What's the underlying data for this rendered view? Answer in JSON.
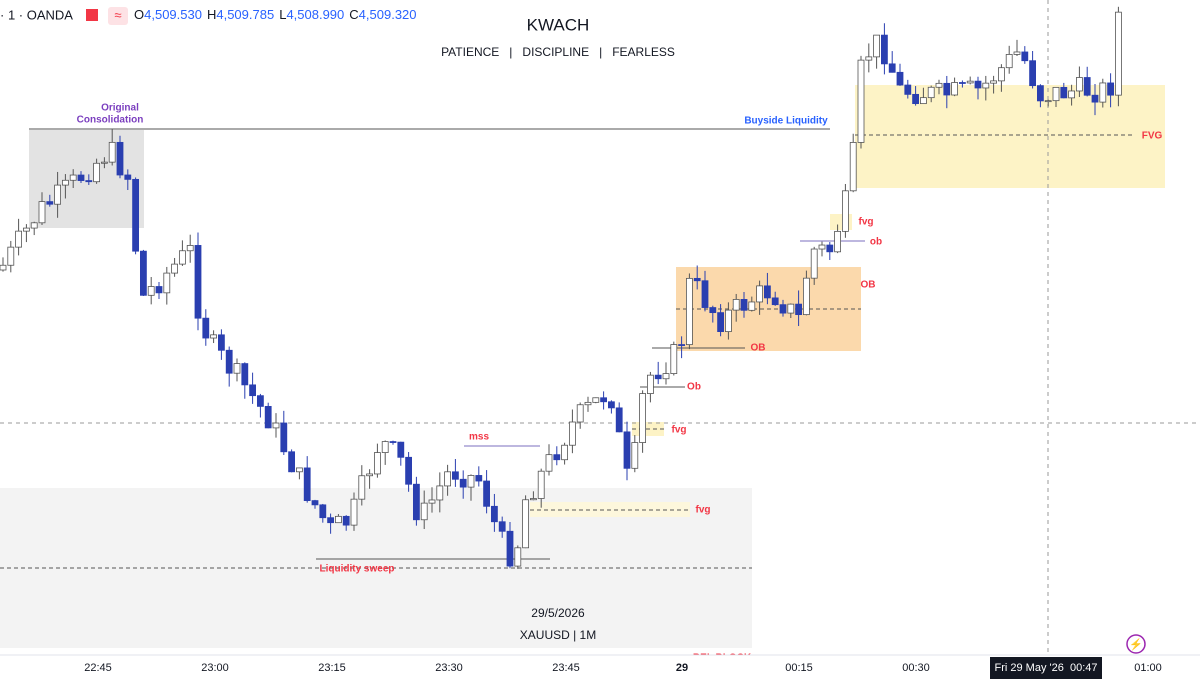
{
  "header": {
    "symbol": "· 1 · OANDA",
    "ohlc": [
      {
        "label": "O",
        "value": "4,509.530"
      },
      {
        "label": "H",
        "value": "4,509.785"
      },
      {
        "label": "L",
        "value": "4,508.990"
      },
      {
        "label": "C",
        "value": "4,509.320"
      }
    ]
  },
  "title": "KWACH",
  "subtitle": "PATIENCE   |   DISCIPLINE   |   FEARLESS",
  "annotations": [
    "Original",
    "Consolidation",
    "Buyside Liquidity",
    "FVG",
    "fvg",
    "ob",
    "OB",
    "OB",
    "Ob",
    "fvg",
    "mss",
    "fvg",
    "Liquidity sweep",
    "BEL BLOCK"
  ],
  "watermark": {
    "date": "29/5/2026",
    "symbol": "XAUUSD | 1M"
  },
  "time_axis": [
    "22:45",
    "23:00",
    "23:15",
    "23:30",
    "23:45",
    "29",
    "00:15",
    "00:30",
    "01:00"
  ],
  "crosshair_label": "Fri 29 May '26  00:47"
}
